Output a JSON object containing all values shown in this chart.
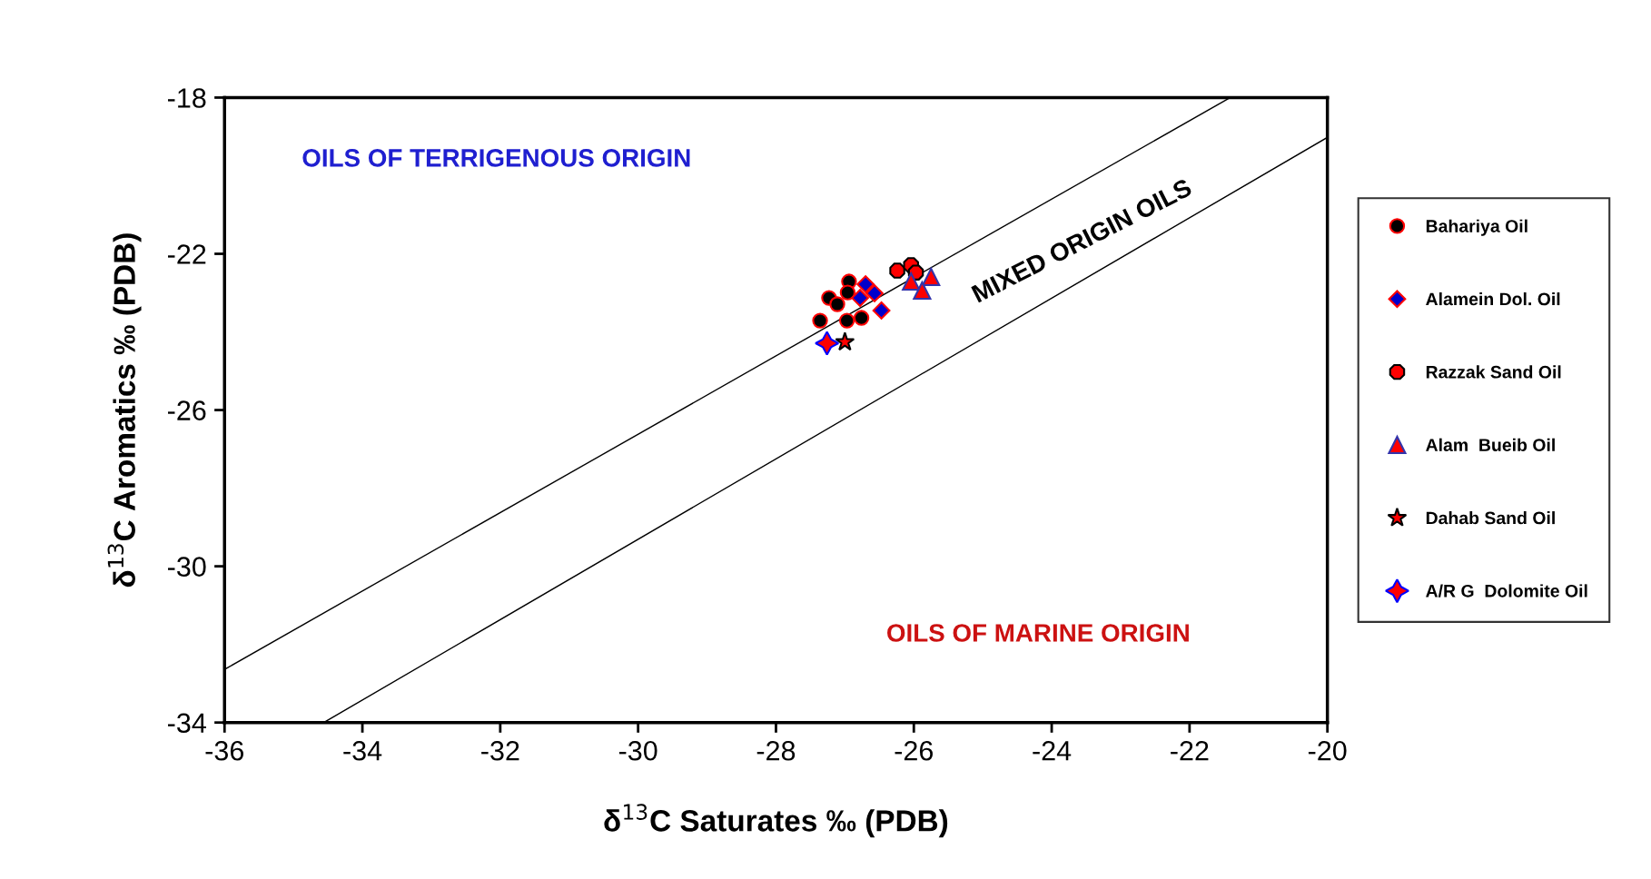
{
  "chart_data": {
    "type": "scatter",
    "xlabel": "δ$^{13}$C Saturates ‰ (PDB)",
    "ylabel": "δ$^{13}$C Aromatics ‰ (PDB)",
    "xlim": [
      -36,
      -20
    ],
    "ylim": [
      -34,
      -18
    ],
    "xticks": [
      -36,
      -34,
      -32,
      -30,
      -28,
      -26,
      -24,
      -22,
      -20
    ],
    "yticks": [
      -34,
      -30,
      -26,
      -22,
      -18
    ],
    "grid": false,
    "legend": "right",
    "annotations": [
      "OILS OF TERRIGENOUS ORIGIN",
      "OILS OF MARINE ORIGIN",
      "MIXED ORIGIN OILS"
    ],
    "series": [
      {
        "name": "Bahariya Oil",
        "color": "#000000",
        "marker": "circle",
        "x": [
          -26.94,
          -27.23,
          -27.11,
          -26.96,
          -27.36,
          -26.97,
          -26.76
        ],
        "values": [
          -22.71,
          -23.13,
          -23.29,
          -22.99,
          -23.71,
          -23.71,
          -23.64
        ]
      },
      {
        "name": "Alamein Dol. Oil",
        "color": "#0000cc",
        "marker": "diamond",
        "x": [
          -26.7,
          -26.57,
          -26.78,
          -26.47
        ],
        "values": [
          -22.78,
          -23.01,
          -23.13,
          -23.45
        ]
      },
      {
        "name": "Razzak Sand Oil",
        "color": "#ff0000",
        "marker": "circle",
        "x": [
          -26.24,
          -26.04,
          -25.97
        ],
        "values": [
          -22.43,
          -22.29,
          -22.48
        ]
      },
      {
        "name": "Alam  Bueib Oil",
        "color": "#ff0000",
        "marker": "triangle",
        "x": [
          -26.04,
          -25.75,
          -25.88
        ],
        "values": [
          -22.71,
          -22.59,
          -22.94
        ]
      },
      {
        "name": "Dahab Sand Oil",
        "color": "#ff0000",
        "marker": "star",
        "x": [
          -27.0
        ],
        "values": [
          -24.26
        ]
      },
      {
        "name": "A/R G  Dolomite Oil",
        "color": "#ff0000",
        "marker": "cross",
        "x": [
          -27.26
        ],
        "values": [
          -24.29
        ]
      },
      {
        "type": "line",
        "color": "#000000",
        "marker": "none",
        "x": [
          -36,
          -21.41
        ],
        "values": [
          -32.64,
          -18
        ]
      },
      {
        "type": "line",
        "color": "#000000",
        "marker": "none",
        "x": [
          -34.56,
          -20
        ],
        "values": [
          -34,
          -19.02
        ]
      }
    ]
  }
}
